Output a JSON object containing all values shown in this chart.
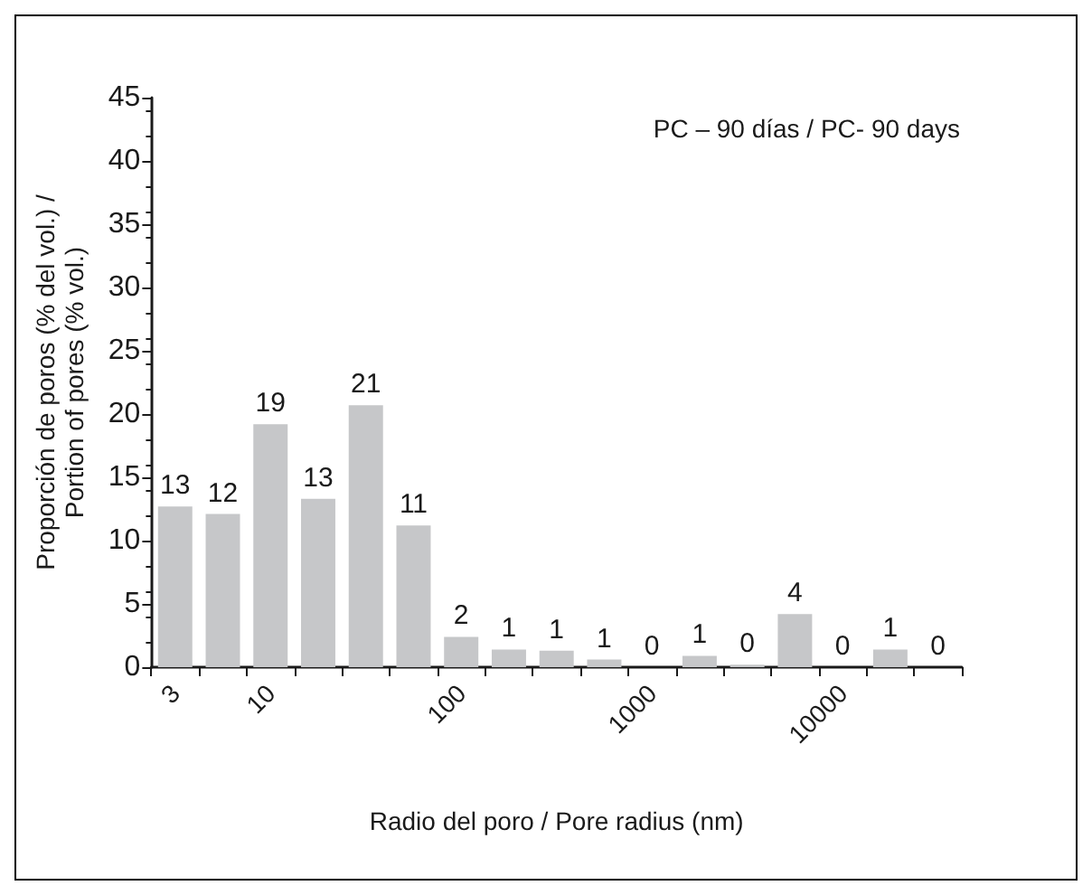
{
  "chart_data": {
    "type": "bar",
    "title": "PC – 90 días / PC- 90 days",
    "xlabel": "Radio del poro / Pore radius (nm)",
    "ylabel": "Proporción de poros (% del vol.) /\nPortion of pores (% vol.)",
    "categories": [
      "3",
      null,
      "10",
      null,
      null,
      null,
      "100",
      null,
      null,
      null,
      "1000",
      null,
      null,
      null,
      "10000",
      null,
      null
    ],
    "values": [
      12.7,
      12.1,
      19.2,
      13.3,
      20.7,
      11.2,
      2.4,
      1.4,
      1.3,
      0.6,
      0,
      0.9,
      0.2,
      4.2,
      0,
      1.4,
      0
    ],
    "value_labels": [
      "13",
      "12",
      "19",
      "13",
      "21",
      "11",
      "2",
      "1",
      "1",
      "1",
      "0",
      "1",
      "0",
      "4",
      "0",
      "1",
      "0"
    ],
    "color": "#c6c7c9",
    "ylim": [
      0,
      45
    ],
    "yticks": [
      0,
      5,
      10,
      15,
      20,
      25,
      30,
      35,
      40,
      45
    ],
    "grid": false
  }
}
